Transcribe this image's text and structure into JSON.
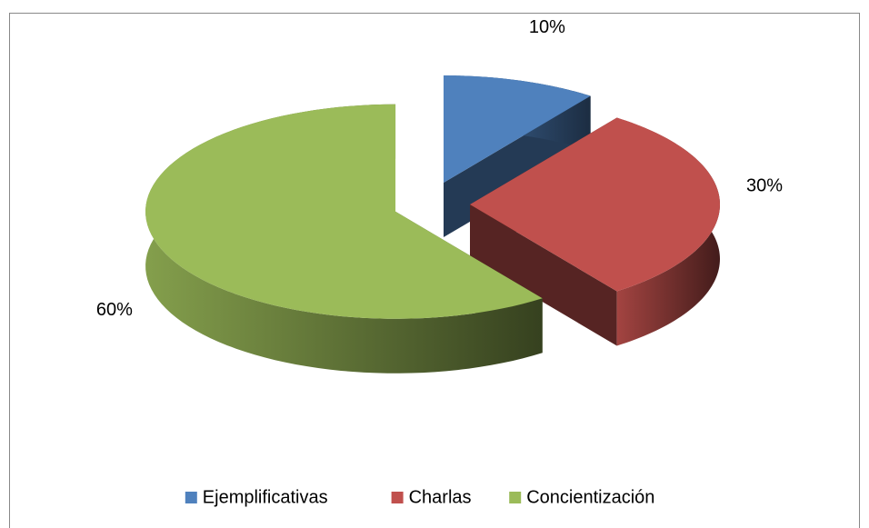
{
  "chart_data": {
    "type": "pie3d",
    "categories": [
      "Ejemplificativas",
      "Charlas",
      "Concientización"
    ],
    "values": [
      10,
      30,
      60
    ],
    "value_labels": [
      "10%",
      "30%",
      "60%"
    ],
    "colors": [
      "#4f81bd",
      "#c0504d",
      "#9bbb59"
    ],
    "legend": "bottom"
  }
}
